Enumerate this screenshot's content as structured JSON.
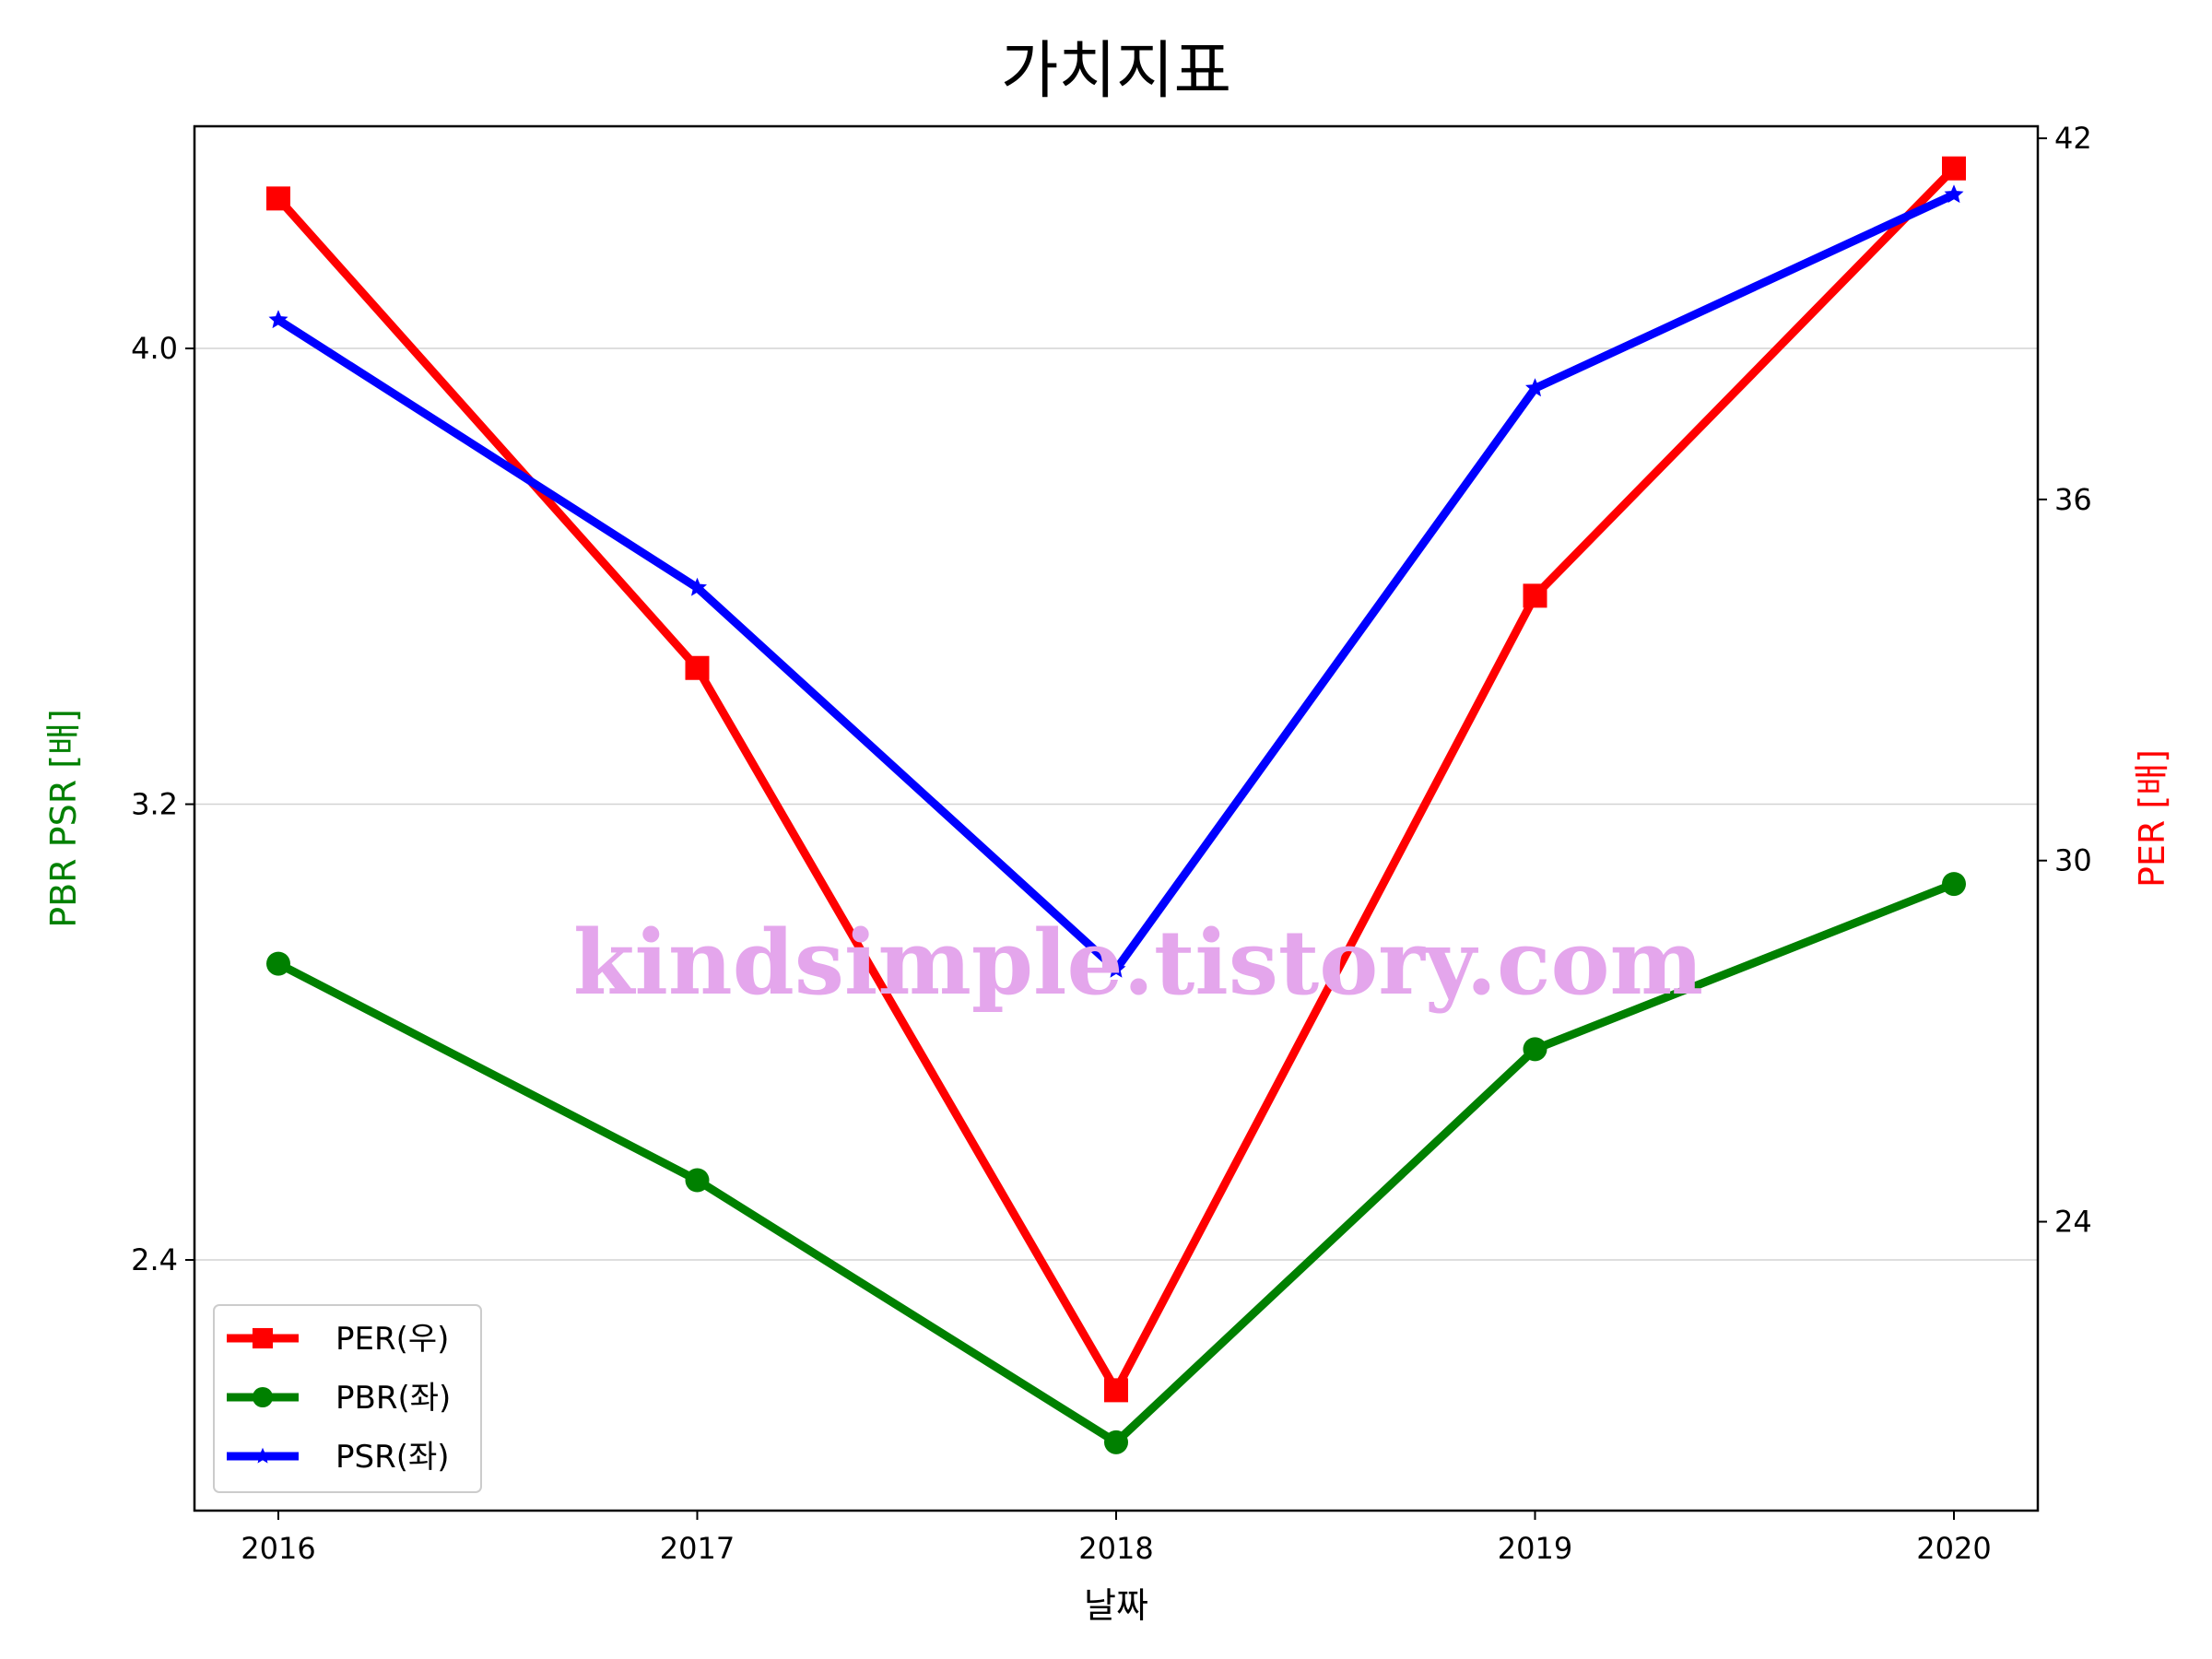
{
  "chart_data": {
    "type": "line",
    "title": "가치지표",
    "xlabel": "날짜",
    "ylabel_left": "PBR PSR [배]",
    "ylabel_right": "PER [배]",
    "ylabel_left_color": "#008000",
    "ylabel_right_color": "#ff0000",
    "categories": [
      "2016",
      "2017",
      "2018",
      "2019",
      "2020"
    ],
    "left_axis": {
      "ylim": [
        1.96,
        4.39
      ],
      "ticks": [
        2.4,
        3.2,
        4.0
      ],
      "tick_labels": [
        "2.4",
        "3.2",
        "4.0"
      ]
    },
    "right_axis": {
      "ylim": [
        19.2,
        42.2
      ],
      "ticks": [
        24,
        30,
        36,
        42
      ],
      "tick_labels": [
        "24",
        "30",
        "36",
        "42"
      ]
    },
    "grid": "horizontal (left axis)",
    "legend_position": "lower-left",
    "series": [
      {
        "name": "PER(우)",
        "axis": "right",
        "color": "#ff0000",
        "marker": "square",
        "values": [
          41.0,
          33.2,
          21.2,
          34.4,
          41.5
        ]
      },
      {
        "name": "PBR(좌)",
        "axis": "left",
        "color": "#008000",
        "marker": "circle",
        "values": [
          2.92,
          2.54,
          2.08,
          2.77,
          3.06
        ]
      },
      {
        "name": "PSR(좌)",
        "axis": "left",
        "color": "#0000ff",
        "marker": "star",
        "values": [
          4.05,
          3.58,
          2.91,
          3.93,
          4.27
        ]
      }
    ],
    "watermark": "kindsimple.tistory.com"
  }
}
